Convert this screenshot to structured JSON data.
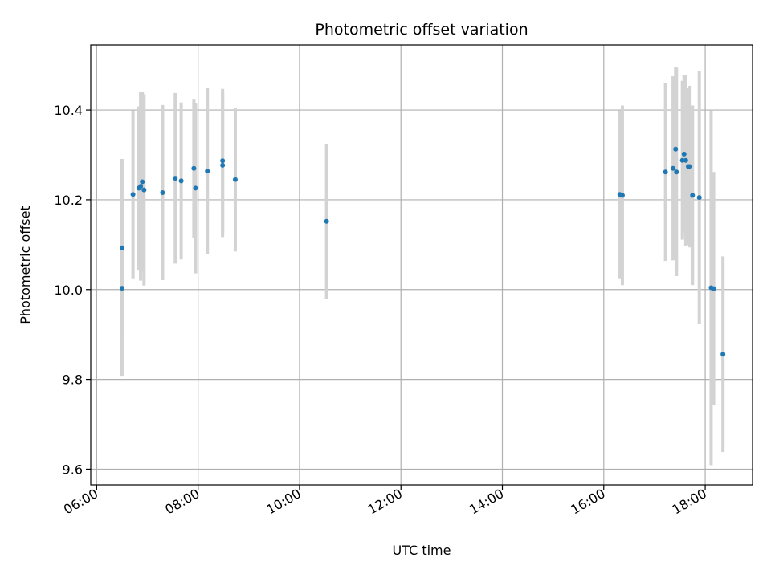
{
  "chart_data": {
    "type": "scatter",
    "title": "Photometric offset variation",
    "xlabel": "UTC time",
    "ylabel": "Photometric offset",
    "x_ticks": [
      "06:00",
      "08:00",
      "10:00",
      "12:00",
      "14:00",
      "16:00",
      "18:00"
    ],
    "y_ticks": [
      "9.6",
      "9.8",
      "10.0",
      "10.2",
      "10.4"
    ],
    "xlim": [
      "05:53",
      "18:56"
    ],
    "ylim": [
      9.565,
      10.545
    ],
    "grid": true,
    "marker_color": "#1f77b4",
    "errorbar_color": "#d3d3d3",
    "points": [
      {
        "x": "06:30",
        "y": 10.003,
        "err": 0.195
      },
      {
        "x": "06:30",
        "y": 10.093,
        "err": 0.198
      },
      {
        "x": "06:43",
        "y": 10.212,
        "err": 0.187
      },
      {
        "x": "06:50",
        "y": 10.226,
        "err": 0.182
      },
      {
        "x": "06:52",
        "y": 10.23,
        "err": 0.21
      },
      {
        "x": "06:54",
        "y": 10.24,
        "err": 0.2
      },
      {
        "x": "06:56",
        "y": 10.222,
        "err": 0.213
      },
      {
        "x": "07:18",
        "y": 10.216,
        "err": 0.195
      },
      {
        "x": "07:33",
        "y": 10.248,
        "err": 0.19
      },
      {
        "x": "07:40",
        "y": 10.242,
        "err": 0.175
      },
      {
        "x": "07:55",
        "y": 10.27,
        "err": 0.155
      },
      {
        "x": "07:57",
        "y": 10.226,
        "err": 0.19
      },
      {
        "x": "08:11",
        "y": 10.264,
        "err": 0.185
      },
      {
        "x": "08:29",
        "y": 10.287,
        "err": 0.16
      },
      {
        "x": "08:29",
        "y": 10.277,
        "err": 0.16
      },
      {
        "x": "08:44",
        "y": 10.245,
        "err": 0.16
      },
      {
        "x": "10:32",
        "y": 10.152,
        "err": 0.173
      },
      {
        "x": "16:19",
        "y": 10.212,
        "err": 0.187
      },
      {
        "x": "16:22",
        "y": 10.21,
        "err": 0.2
      },
      {
        "x": "17:13",
        "y": 10.262,
        "err": 0.198
      },
      {
        "x": "17:22",
        "y": 10.27,
        "err": 0.205
      },
      {
        "x": "17:25",
        "y": 10.313,
        "err": 0.182
      },
      {
        "x": "17:26",
        "y": 10.262,
        "err": 0.232
      },
      {
        "x": "17:33",
        "y": 10.288,
        "err": 0.177
      },
      {
        "x": "17:35",
        "y": 10.302,
        "err": 0.175
      },
      {
        "x": "17:37",
        "y": 10.288,
        "err": 0.19
      },
      {
        "x": "17:40",
        "y": 10.274,
        "err": 0.175
      },
      {
        "x": "17:42",
        "y": 10.274,
        "err": 0.18
      },
      {
        "x": "17:45",
        "y": 10.21,
        "err": 0.2
      },
      {
        "x": "17:53",
        "y": 10.205,
        "err": 0.282
      },
      {
        "x": "18:07",
        "y": 10.004,
        "err": 0.395
      },
      {
        "x": "18:10",
        "y": 10.002,
        "err": 0.26
      },
      {
        "x": "18:21",
        "y": 9.856,
        "err": 0.218
      }
    ]
  }
}
